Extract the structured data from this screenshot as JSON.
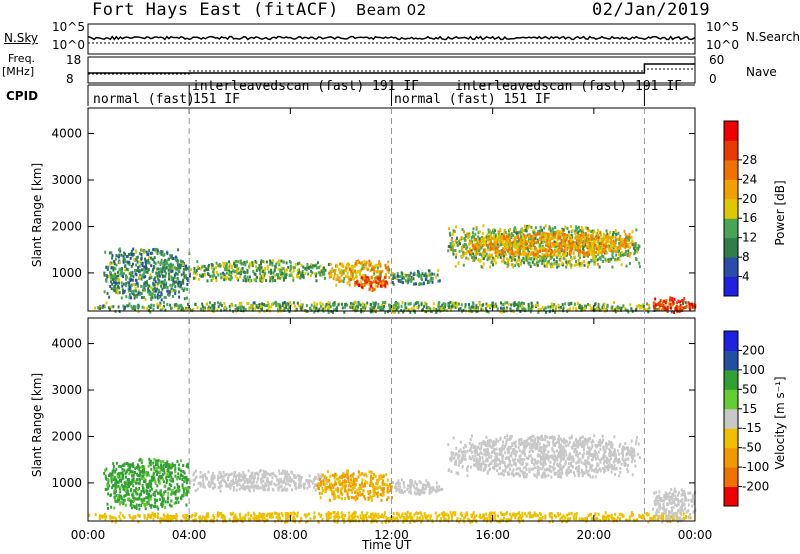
{
  "header": {
    "radar": "Fort Hays East (fitACF)",
    "beam": "Beam 02",
    "date": "02/Jan/2019"
  },
  "left_labels": {
    "nsky": "N.Sky",
    "freq_line1": "Freq.",
    "freq_line2": "[MHz]",
    "cpid": "CPID"
  },
  "right_labels": {
    "nsearch": "N.Search",
    "nave": "Nave"
  },
  "noise_panel": {
    "left_ticks": [
      "10^5",
      "10^0"
    ],
    "right_ticks": [
      "10^5",
      "10^0"
    ]
  },
  "freq_panel": {
    "left_ticks": [
      "18",
      "8"
    ],
    "right_ticks": [
      "60",
      "0"
    ]
  },
  "cpid_segments": [
    {
      "label": "normal (fast)",
      "start_hr": 0
    },
    {
      "label": "151 IF",
      "start_hr": 0
    },
    {
      "label": "interleavedscan (fast) 191 IF",
      "start_hr": 4
    },
    {
      "label": "normal (fast) 151 IF",
      "start_hr": 12
    },
    {
      "label": "interleavedscan (fast) 191 IF",
      "start_hr": 14
    }
  ],
  "colors": {
    "power": [
      "#2020e0",
      "#2a4ea8",
      "#2f7d4a",
      "#49a556",
      "#e0c800",
      "#f0a000",
      "#f07000",
      "#e83a00",
      "#f00000"
    ],
    "velocity": [
      "#f00000",
      "#f07000",
      "#f09a00",
      "#f0c000",
      "#c8c8c8",
      "#66cc33",
      "#33a033",
      "#2050a0",
      "#2020e0"
    ]
  },
  "chart_data": [
    {
      "type": "heatmap",
      "name": "power",
      "ylabel": "Slant Range [km]",
      "xlabel": "",
      "x_ticks": [
        "00:00",
        "04:00",
        "08:00",
        "12:00",
        "16:00",
        "20:00",
        "00:00"
      ],
      "x_range_hr": [
        0,
        24
      ],
      "y_ticks": [
        1000,
        2000,
        3000,
        4000
      ],
      "ylim": [
        180,
        4550
      ],
      "colorbar": {
        "label": "Power [dB]",
        "ticks": [
          4,
          8,
          12,
          16,
          20,
          24,
          28
        ],
        "range": [
          0,
          32
        ]
      },
      "features": [
        {
          "t": [
            0.6,
            4.0
          ],
          "r": [
            450,
            1550
          ],
          "value": 10
        },
        {
          "t": [
            4.0,
            9.5
          ],
          "r": [
            850,
            1300
          ],
          "value": 12
        },
        {
          "t": [
            9.5,
            12.0
          ],
          "r": [
            750,
            1300
          ],
          "value": 18
        },
        {
          "t": [
            10.5,
            11.8
          ],
          "r": [
            650,
            950
          ],
          "value": 26
        },
        {
          "t": [
            12.0,
            14.0
          ],
          "r": [
            780,
            1100
          ],
          "value": 10
        },
        {
          "t": [
            14.2,
            21.8
          ],
          "r": [
            1150,
            2050
          ],
          "value": 14
        },
        {
          "t": [
            15.0,
            21.5
          ],
          "r": [
            1400,
            1900
          ],
          "value": 20
        },
        {
          "t": [
            0.0,
            24.0
          ],
          "r": [
            180,
            400
          ],
          "value": 12
        },
        {
          "t": [
            22.3,
            24.0
          ],
          "r": [
            180,
            500
          ],
          "value": 28
        }
      ]
    },
    {
      "type": "heatmap",
      "name": "velocity",
      "ylabel": "Slant Range [km]",
      "xlabel": "Time UT",
      "x_ticks": [
        "00:00",
        "04:00",
        "08:00",
        "12:00",
        "16:00",
        "20:00",
        "00:00"
      ],
      "x_range_hr": [
        0,
        24
      ],
      "y_ticks": [
        1000,
        2000,
        3000,
        4000
      ],
      "ylim": [
        180,
        4550
      ],
      "colorbar": {
        "label": "Velocity [m s⁻¹]",
        "ticks": [
          -200,
          -100,
          -50,
          -15,
          15,
          50,
          100,
          200
        ]
      },
      "features": [
        {
          "t": [
            0.6,
            4.0
          ],
          "r": [
            450,
            1550
          ],
          "value": 60
        },
        {
          "t": [
            4.0,
            9.5
          ],
          "r": [
            850,
            1300
          ],
          "value": 0
        },
        {
          "t": [
            9.0,
            12.0
          ],
          "r": [
            650,
            1300
          ],
          "value": -50
        },
        {
          "t": [
            12.0,
            14.0
          ],
          "r": [
            780,
            1100
          ],
          "value": 0
        },
        {
          "t": [
            14.2,
            21.8
          ],
          "r": [
            1150,
            2050
          ],
          "value": 0
        },
        {
          "t": [
            0.0,
            24.0
          ],
          "r": [
            180,
            400
          ],
          "value": -30
        },
        {
          "t": [
            22.3,
            24.0
          ],
          "r": [
            180,
            900
          ],
          "value": 0
        }
      ]
    }
  ]
}
